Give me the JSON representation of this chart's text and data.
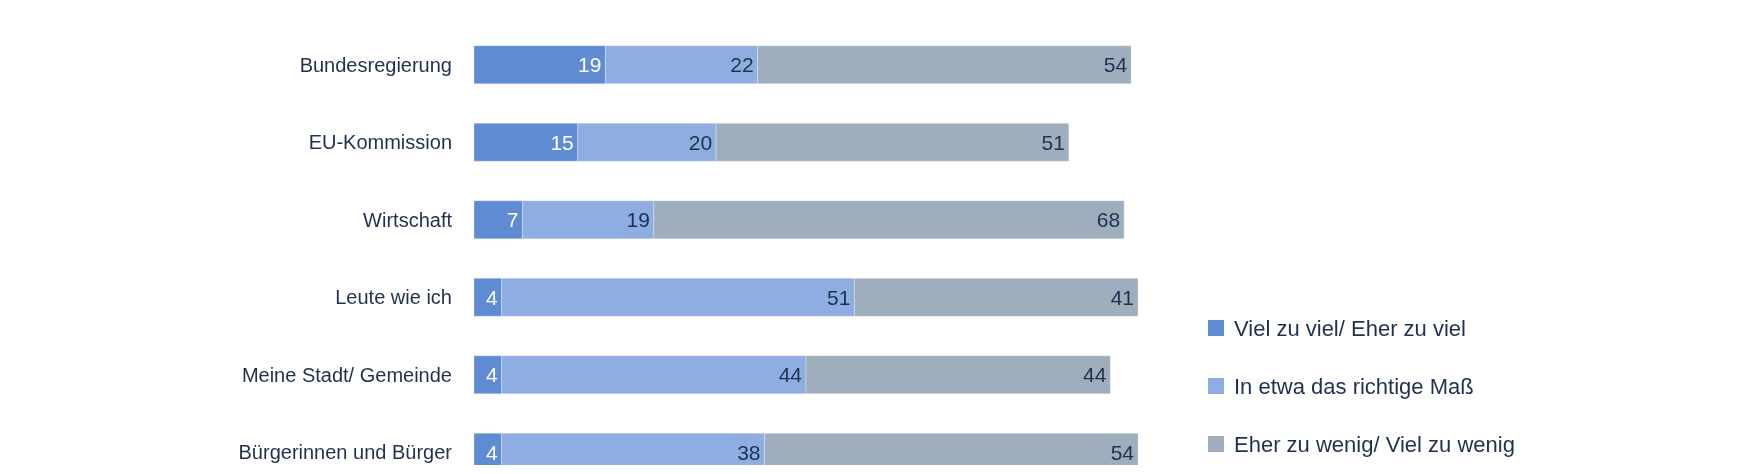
{
  "chart_data": {
    "type": "bar",
    "orientation": "horizontal",
    "stacked": true,
    "data_labels": true,
    "legend": "right",
    "categories": [
      "Bundesregierung",
      "EU-Kommission",
      "Wirtschaft",
      "Leute wie ich",
      "Meine Stadt/ Gemeinde",
      "Bürgerinnen und Bürger"
    ],
    "series": [
      {
        "name": "Viel zu viel/ Eher zu viel",
        "color": "#5f8bd2",
        "values": [
          19,
          15,
          7,
          4,
          4,
          4
        ]
      },
      {
        "name": "In etwa das richtige Maß",
        "color": "#8eade0",
        "values": [
          22,
          20,
          19,
          51,
          44,
          38
        ]
      },
      {
        "name": "Eher zu wenig/ Viel zu wenig",
        "color": "#9eaebd",
        "values": [
          54,
          51,
          68,
          41,
          44,
          54
        ]
      }
    ]
  }
}
